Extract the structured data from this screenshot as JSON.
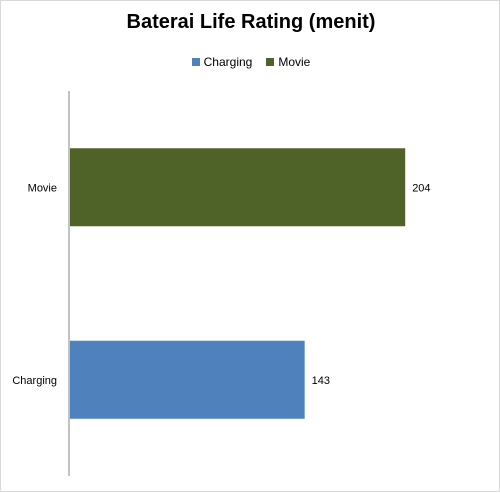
{
  "chart_data": {
    "type": "bar",
    "orientation": "horizontal",
    "title": "Baterai Life Rating (menit)",
    "categories": [
      "Movie",
      "Charging"
    ],
    "values": [
      204,
      143
    ],
    "colors": [
      "#4f6228",
      "#4f81bd"
    ],
    "xlim": [
      0,
      250
    ],
    "grid": false,
    "legend_position": "top",
    "legend": [
      {
        "label": "Charging",
        "color": "#4f81bd"
      },
      {
        "label": "Movie",
        "color": "#4f6228"
      }
    ],
    "data_labels": [
      "204",
      "143"
    ]
  }
}
